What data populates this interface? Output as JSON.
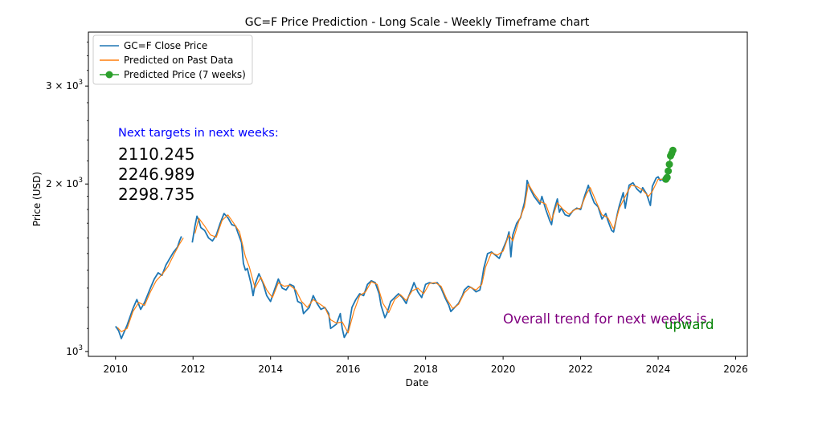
{
  "chart_data": {
    "type": "line",
    "title": "GC=F Price Prediction - Long Scale - Weekly Timeframe chart",
    "xlabel": "Date",
    "ylabel": "Price (USD)",
    "yscale": "log",
    "xlim": [
      2009.3,
      2026.3
    ],
    "ylim": [
      980,
      3750
    ],
    "x_ticks": [
      2010,
      2012,
      2014,
      2016,
      2018,
      2020,
      2022,
      2024,
      2026
    ],
    "y_ticks": [
      {
        "value": 1000,
        "base": "10",
        "exp": "3",
        "mult": ""
      },
      {
        "value": 2000,
        "base": "10",
        "exp": "3",
        "mult": "2 × "
      },
      {
        "value": 3000,
        "base": "10",
        "exp": "3",
        "mult": "3 × "
      }
    ],
    "legend": {
      "position": "top-left",
      "entries": [
        {
          "label": "GC=F Close Price",
          "color": "#1f77b4",
          "marker": "line"
        },
        {
          "label": "Predicted on Past Data",
          "color": "#ff7f0e",
          "marker": "line"
        },
        {
          "label": "Predicted Price (7 weeks)",
          "color": "#2ca02c",
          "marker": "line-dot"
        }
      ]
    },
    "series": [
      {
        "name": "GC=F Close Price",
        "color": "#1f77b4",
        "points": [
          [
            2010.0,
            1110
          ],
          [
            2010.08,
            1090
          ],
          [
            2010.15,
            1055
          ],
          [
            2010.3,
            1115
          ],
          [
            2010.45,
            1195
          ],
          [
            2010.55,
            1240
          ],
          [
            2010.65,
            1190
          ],
          [
            2010.75,
            1225
          ],
          [
            2010.9,
            1300
          ],
          [
            2011.0,
            1350
          ],
          [
            2011.1,
            1385
          ],
          [
            2011.2,
            1370
          ],
          [
            2011.3,
            1430
          ],
          [
            2011.4,
            1470
          ],
          [
            2011.5,
            1510
          ],
          [
            2011.6,
            1540
          ],
          [
            2011.65,
            1580
          ],
          [
            2011.7,
            1610
          ],
          null,
          [
            2011.98,
            1570
          ],
          [
            2012.05,
            1680
          ],
          [
            2012.1,
            1750
          ],
          [
            2012.15,
            1720
          ],
          [
            2012.2,
            1670
          ],
          [
            2012.3,
            1650
          ],
          [
            2012.4,
            1600
          ],
          [
            2012.5,
            1580
          ],
          [
            2012.6,
            1620
          ],
          [
            2012.7,
            1700
          ],
          [
            2012.8,
            1770
          ],
          [
            2012.9,
            1740
          ],
          [
            2013.0,
            1690
          ],
          [
            2013.1,
            1680
          ],
          [
            2013.15,
            1640
          ],
          [
            2013.25,
            1570
          ],
          [
            2013.3,
            1440
          ],
          [
            2013.35,
            1400
          ],
          [
            2013.4,
            1410
          ],
          [
            2013.5,
            1320
          ],
          [
            2013.55,
            1260
          ],
          [
            2013.6,
            1320
          ],
          [
            2013.7,
            1380
          ],
          [
            2013.8,
            1330
          ],
          [
            2013.9,
            1260
          ],
          [
            2014.0,
            1230
          ],
          [
            2014.1,
            1290
          ],
          [
            2014.2,
            1350
          ],
          [
            2014.3,
            1300
          ],
          [
            2014.4,
            1290
          ],
          [
            2014.5,
            1320
          ],
          [
            2014.6,
            1310
          ],
          [
            2014.7,
            1230
          ],
          [
            2014.8,
            1220
          ],
          [
            2014.85,
            1170
          ],
          [
            2015.0,
            1200
          ],
          [
            2015.1,
            1260
          ],
          [
            2015.2,
            1220
          ],
          [
            2015.3,
            1190
          ],
          [
            2015.4,
            1200
          ],
          [
            2015.5,
            1170
          ],
          [
            2015.55,
            1100
          ],
          [
            2015.7,
            1120
          ],
          [
            2015.8,
            1170
          ],
          [
            2015.85,
            1100
          ],
          [
            2015.9,
            1060
          ],
          [
            2016.0,
            1090
          ],
          [
            2016.1,
            1200
          ],
          [
            2016.2,
            1240
          ],
          [
            2016.3,
            1270
          ],
          [
            2016.4,
            1260
          ],
          [
            2016.5,
            1320
          ],
          [
            2016.6,
            1340
          ],
          [
            2016.7,
            1330
          ],
          [
            2016.8,
            1270
          ],
          [
            2016.85,
            1210
          ],
          [
            2016.95,
            1150
          ],
          [
            2017.0,
            1170
          ],
          [
            2017.1,
            1230
          ],
          [
            2017.2,
            1250
          ],
          [
            2017.3,
            1270
          ],
          [
            2017.4,
            1250
          ],
          [
            2017.5,
            1220
          ],
          [
            2017.55,
            1250
          ],
          [
            2017.65,
            1300
          ],
          [
            2017.7,
            1330
          ],
          [
            2017.8,
            1280
          ],
          [
            2017.9,
            1250
          ],
          [
            2018.0,
            1320
          ],
          [
            2018.1,
            1330
          ],
          [
            2018.2,
            1325
          ],
          [
            2018.3,
            1330
          ],
          [
            2018.4,
            1300
          ],
          [
            2018.5,
            1250
          ],
          [
            2018.6,
            1210
          ],
          [
            2018.65,
            1180
          ],
          [
            2018.75,
            1200
          ],
          [
            2018.85,
            1220
          ],
          [
            2018.95,
            1260
          ],
          [
            2019.0,
            1290
          ],
          [
            2019.1,
            1310
          ],
          [
            2019.2,
            1300
          ],
          [
            2019.3,
            1280
          ],
          [
            2019.4,
            1290
          ],
          [
            2019.45,
            1340
          ],
          [
            2019.5,
            1410
          ],
          [
            2019.6,
            1500
          ],
          [
            2019.7,
            1510
          ],
          [
            2019.8,
            1490
          ],
          [
            2019.9,
            1470
          ],
          [
            2020.0,
            1530
          ],
          [
            2020.1,
            1590
          ],
          [
            2020.15,
            1640
          ],
          [
            2020.2,
            1480
          ],
          [
            2020.25,
            1620
          ],
          [
            2020.35,
            1700
          ],
          [
            2020.45,
            1740
          ],
          [
            2020.55,
            1850
          ],
          [
            2020.6,
            1960
          ],
          [
            2020.62,
            2030
          ],
          [
            2020.7,
            1960
          ],
          [
            2020.8,
            1900
          ],
          [
            2020.9,
            1860
          ],
          [
            2020.95,
            1840
          ],
          [
            2021.0,
            1900
          ],
          [
            2021.1,
            1800
          ],
          [
            2021.2,
            1720
          ],
          [
            2021.25,
            1690
          ],
          [
            2021.3,
            1780
          ],
          [
            2021.4,
            1880
          ],
          [
            2021.45,
            1780
          ],
          [
            2021.5,
            1810
          ],
          [
            2021.6,
            1760
          ],
          [
            2021.7,
            1750
          ],
          [
            2021.8,
            1790
          ],
          [
            2021.9,
            1810
          ],
          [
            2022.0,
            1800
          ],
          [
            2022.1,
            1900
          ],
          [
            2022.2,
            1990
          ],
          [
            2022.25,
            1930
          ],
          [
            2022.35,
            1850
          ],
          [
            2022.45,
            1820
          ],
          [
            2022.55,
            1730
          ],
          [
            2022.65,
            1770
          ],
          [
            2022.7,
            1720
          ],
          [
            2022.8,
            1650
          ],
          [
            2022.85,
            1640
          ],
          [
            2022.95,
            1770
          ],
          [
            2023.0,
            1830
          ],
          [
            2023.1,
            1930
          ],
          [
            2023.15,
            1810
          ],
          [
            2023.25,
            1990
          ],
          [
            2023.35,
            2010
          ],
          [
            2023.45,
            1960
          ],
          [
            2023.55,
            1930
          ],
          [
            2023.6,
            1970
          ],
          [
            2023.7,
            1920
          ],
          [
            2023.8,
            1830
          ],
          [
            2023.85,
            1980
          ],
          [
            2023.95,
            2050
          ],
          [
            2024.0,
            2060
          ],
          [
            2024.05,
            2030
          ],
          [
            2024.1,
            2040
          ],
          [
            2024.15,
            2020
          ],
          [
            2024.2,
            2050
          ]
        ]
      },
      {
        "name": "Predicted on Past Data",
        "color": "#ff7f0e",
        "points": [
          [
            2010.05,
            1105
          ],
          [
            2010.15,
            1085
          ],
          [
            2010.3,
            1100
          ],
          [
            2010.45,
            1180
          ],
          [
            2010.6,
            1225
          ],
          [
            2010.75,
            1210
          ],
          [
            2010.9,
            1280
          ],
          [
            2011.05,
            1340
          ],
          [
            2011.2,
            1375
          ],
          [
            2011.35,
            1420
          ],
          [
            2011.5,
            1490
          ],
          [
            2011.65,
            1560
          ],
          [
            2011.75,
            1600
          ],
          null,
          [
            2012.05,
            1630
          ],
          [
            2012.15,
            1735
          ],
          [
            2012.3,
            1680
          ],
          [
            2012.45,
            1620
          ],
          [
            2012.6,
            1605
          ],
          [
            2012.75,
            1720
          ],
          [
            2012.9,
            1760
          ],
          [
            2013.05,
            1700
          ],
          [
            2013.2,
            1640
          ],
          [
            2013.35,
            1480
          ],
          [
            2013.45,
            1420
          ],
          [
            2013.6,
            1300
          ],
          [
            2013.75,
            1360
          ],
          [
            2013.9,
            1290
          ],
          [
            2014.05,
            1250
          ],
          [
            2014.2,
            1330
          ],
          [
            2014.35,
            1310
          ],
          [
            2014.5,
            1315
          ],
          [
            2014.65,
            1290
          ],
          [
            2014.8,
            1230
          ],
          [
            2014.95,
            1200
          ],
          [
            2015.1,
            1240
          ],
          [
            2015.25,
            1220
          ],
          [
            2015.4,
            1200
          ],
          [
            2015.55,
            1140
          ],
          [
            2015.7,
            1125
          ],
          [
            2015.85,
            1130
          ],
          [
            2016.0,
            1080
          ],
          [
            2016.15,
            1180
          ],
          [
            2016.3,
            1260
          ],
          [
            2016.45,
            1280
          ],
          [
            2016.6,
            1335
          ],
          [
            2016.75,
            1320
          ],
          [
            2016.9,
            1220
          ],
          [
            2017.05,
            1175
          ],
          [
            2017.2,
            1240
          ],
          [
            2017.35,
            1265
          ],
          [
            2017.5,
            1235
          ],
          [
            2017.65,
            1285
          ],
          [
            2017.8,
            1300
          ],
          [
            2017.95,
            1270
          ],
          [
            2018.1,
            1325
          ],
          [
            2018.25,
            1330
          ],
          [
            2018.4,
            1310
          ],
          [
            2018.55,
            1240
          ],
          [
            2018.7,
            1195
          ],
          [
            2018.85,
            1215
          ],
          [
            2019.0,
            1275
          ],
          [
            2019.15,
            1305
          ],
          [
            2019.3,
            1290
          ],
          [
            2019.45,
            1320
          ],
          [
            2019.55,
            1420
          ],
          [
            2019.7,
            1505
          ],
          [
            2019.85,
            1490
          ],
          [
            2020.0,
            1515
          ],
          [
            2020.15,
            1620
          ],
          [
            2020.25,
            1580
          ],
          [
            2020.4,
            1710
          ],
          [
            2020.55,
            1820
          ],
          [
            2020.65,
            2000
          ],
          [
            2020.8,
            1920
          ],
          [
            2020.95,
            1860
          ],
          [
            2021.1,
            1840
          ],
          [
            2021.25,
            1720
          ],
          [
            2021.4,
            1850
          ],
          [
            2021.55,
            1800
          ],
          [
            2021.7,
            1765
          ],
          [
            2021.85,
            1800
          ],
          [
            2022.0,
            1810
          ],
          [
            2022.15,
            1920
          ],
          [
            2022.25,
            1970
          ],
          [
            2022.4,
            1860
          ],
          [
            2022.55,
            1760
          ],
          [
            2022.7,
            1740
          ],
          [
            2022.85,
            1660
          ],
          [
            2023.0,
            1810
          ],
          [
            2023.15,
            1900
          ],
          [
            2023.3,
            1990
          ],
          [
            2023.45,
            1980
          ],
          [
            2023.6,
            1950
          ],
          [
            2023.75,
            1900
          ],
          [
            2023.85,
            1940
          ],
          [
            2024.0,
            2040
          ],
          [
            2024.15,
            2040
          ],
          [
            2024.25,
            2050
          ]
        ]
      }
    ],
    "predicted_points": {
      "name": "Predicted Price (7 weeks)",
      "color": "#2ca02c",
      "points": [
        [
          2024.2,
          2040
        ],
        [
          2024.23,
          2055
        ],
        [
          2024.26,
          2110.245
        ],
        [
          2024.29,
          2170
        ],
        [
          2024.32,
          2246.989
        ],
        [
          2024.35,
          2270
        ],
        [
          2024.38,
          2298.735
        ]
      ]
    },
    "annotations": {
      "targets_heading": "Next targets in next weeks:",
      "targets": [
        "2110.245",
        "2246.989",
        "2298.735"
      ],
      "trend_label": "Overall trend for next weeks is",
      "trend_value": "upward",
      "heading_color": "#0000ff",
      "trend_label_color": "#800080",
      "trend_value_color": "#008000"
    }
  }
}
